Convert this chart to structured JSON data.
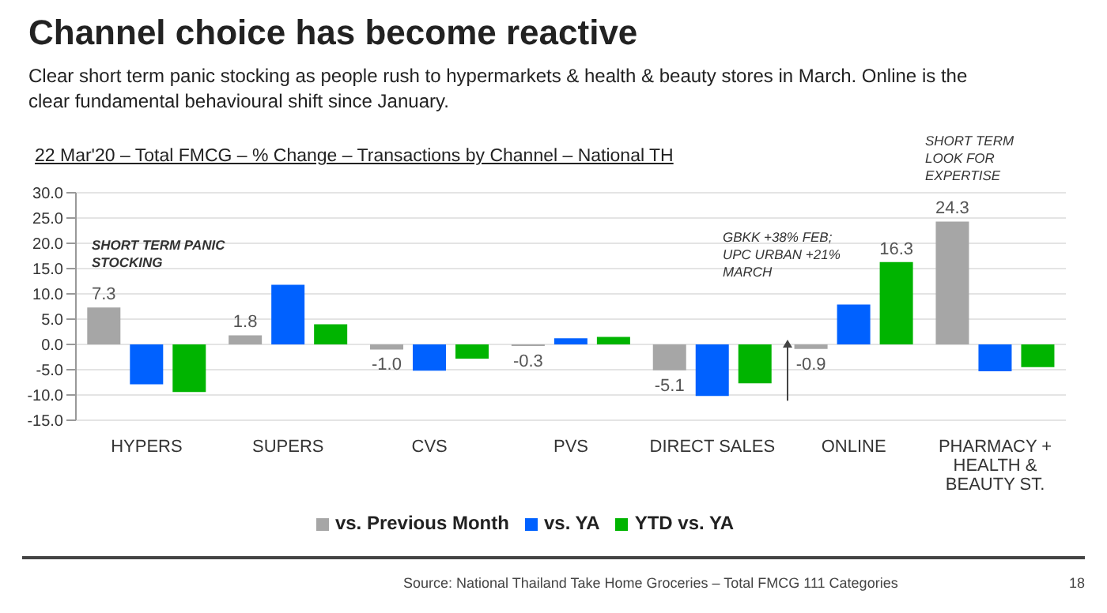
{
  "chart_data": {
    "type": "bar",
    "title": "Channel choice has become reactive",
    "subtitle": "Clear short term panic stocking as people rush to hypermarkets & health  & beauty stores in March. Online is the clear fundamental behavioural shift since January.",
    "categories": [
      "HYPERS",
      "SUPERS",
      "CVS",
      "PVS",
      "DIRECT SALES",
      "ONLINE",
      "PHARMACY + HEALTH & BEAUTY ST."
    ],
    "series": [
      {
        "name": "vs. Previous Month",
        "color": "#a6a6a6",
        "values": [
          7.3,
          1.8,
          -1.0,
          -0.3,
          -5.1,
          -0.9,
          24.3
        ],
        "value_labels": [
          "7.3",
          "1.8",
          "-1.0",
          "-0.3",
          "-5.1",
          "-0.9",
          "24.3"
        ]
      },
      {
        "name": "vs. YA",
        "color": "#0061ff",
        "values": [
          -7.9,
          11.8,
          -5.2,
          1.2,
          -10.2,
          7.9,
          -5.3
        ]
      },
      {
        "name": "YTD vs. YA",
        "color": "#00b400",
        "values": [
          -9.4,
          4.0,
          -2.8,
          1.5,
          -7.7,
          16.3,
          -4.5
        ],
        "value_labels": [
          null,
          null,
          null,
          null,
          null,
          "16.3",
          null
        ]
      }
    ],
    "ylim": [
      -15,
      30
    ],
    "yticks": [
      {
        "value": -15,
        "label": "-15.0"
      },
      {
        "value": -10,
        "label": "-10.0"
      },
      {
        "value": -5,
        "label": "-5.0"
      },
      {
        "value": 0,
        "label": "0.0"
      },
      {
        "value": 5,
        "label": "5.0"
      },
      {
        "value": 10,
        "label": "10.0"
      },
      {
        "value": 15,
        "label": "15.0"
      },
      {
        "value": 20,
        "label": "20.0"
      },
      {
        "value": 25,
        "label": "25.0"
      },
      {
        "value": 30,
        "label": "30.0"
      }
    ],
    "grid": "y",
    "legend": "bottom",
    "annotations": [
      "22 Mar'20 – Total FMCG – % Change – Transactions by Channel – National TH",
      "SHORT TERM PANIC STOCKING",
      "GBKK +38% FEB; UPC URBAN +21% MARCH",
      "SHORT TERM LOOK FOR EXPERTISE",
      "Source: National Thailand Take Home Groceries – Total FMCG 111 Categories",
      "18"
    ]
  }
}
